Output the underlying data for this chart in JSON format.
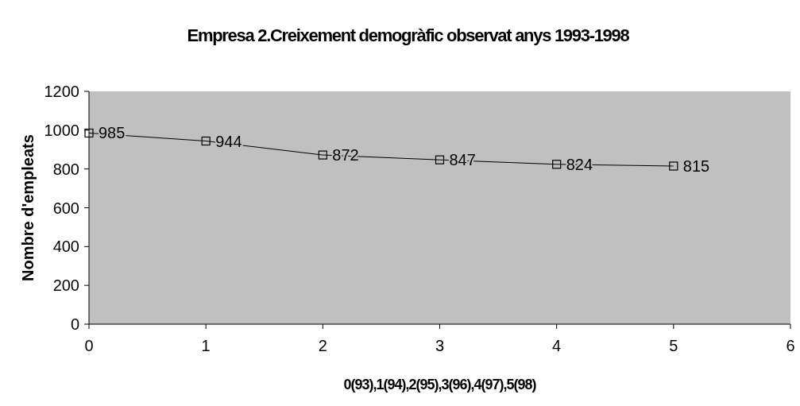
{
  "chart_data": {
    "type": "line",
    "title": "Empresa 2.Creixement demogràfic observat anys 1993-1998",
    "xlabel": "0(93),1(94),2(95),3(96),4(97),5(98)",
    "ylabel": "Nombre d'empleats",
    "x": [
      0,
      1,
      2,
      3,
      4,
      5
    ],
    "series": [
      {
        "color": "#000000",
        "values": [
          985,
          944,
          872,
          847,
          824,
          815
        ]
      }
    ],
    "xlim": [
      0,
      6
    ],
    "xticks": [
      0,
      1,
      2,
      3,
      4,
      5,
      6
    ],
    "ylim": [
      0,
      1200
    ],
    "yticks": [
      0,
      200,
      400,
      600,
      800,
      1000,
      1200
    ],
    "marker": "square",
    "data_labels": true
  }
}
